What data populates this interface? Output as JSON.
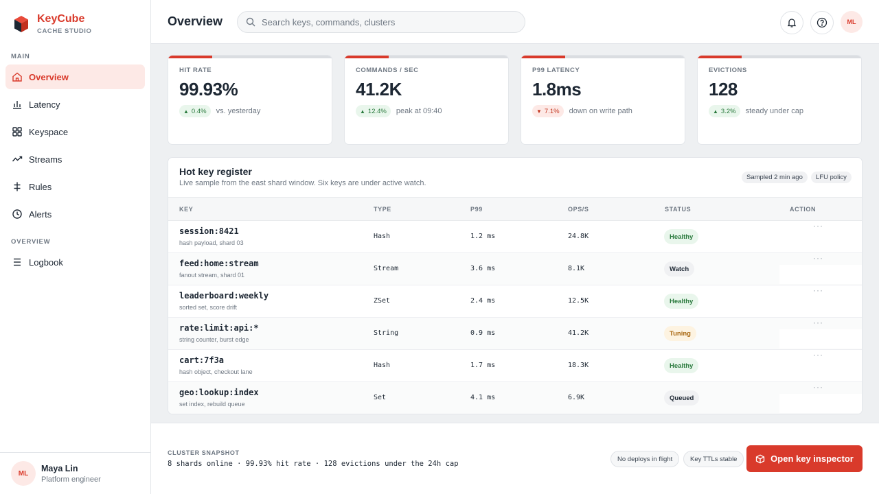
{
  "colors": {
    "accent": "#d93a2b",
    "healthy": "#2a7a3d",
    "tuning": "#a86710"
  },
  "brand": {
    "name": "KeyCube",
    "subtitle": "CACHE STUDIO",
    "logo_icon": "cube-logo-icon"
  },
  "sidebar": {
    "section_main": "MAIN",
    "section_overview": "OVERVIEW",
    "items": [
      {
        "label": "Overview",
        "icon": "home-icon",
        "active": true
      },
      {
        "label": "Latency",
        "icon": "bar-chart-icon"
      },
      {
        "label": "Keyspace",
        "icon": "grid-icon"
      },
      {
        "label": "Streams",
        "icon": "trend-icon"
      },
      {
        "label": "Rules",
        "icon": "rules-icon"
      },
      {
        "label": "Alerts",
        "icon": "clock-icon"
      },
      {
        "label": "Logbook",
        "icon": "list-icon"
      }
    ],
    "user": {
      "initials": "ML",
      "name": "Maya Lin",
      "role": "Platform engineer"
    }
  },
  "header": {
    "title": "Overview",
    "search_placeholder": "Search keys, commands, clusters",
    "avatar_initials": "ML"
  },
  "kpis": [
    {
      "label": "HIT RATE",
      "value": "99.93%",
      "delta": "0.4%",
      "direction": "up",
      "note": "vs. yesterday",
      "bar_fraction": 0.27
    },
    {
      "label": "COMMANDS / SEC",
      "value": "41.2K",
      "delta": "12.4%",
      "direction": "up",
      "note": "peak at 09:40",
      "bar_fraction": 0.27
    },
    {
      "label": "P99 LATENCY",
      "value": "1.8ms",
      "delta": "7.1%",
      "direction": "down",
      "note": "down on write path",
      "bar_fraction": 0.27
    },
    {
      "label": "EVICTIONS",
      "value": "128",
      "delta": "3.2%",
      "direction": "up",
      "note": "steady under cap",
      "bar_fraction": 0.27
    }
  ],
  "register": {
    "title": "Hot key register",
    "subtitle": "Live sample from the east shard window. Six keys are under active watch.",
    "pill_sampled": "Sampled 2 min ago",
    "pill_policy": "LFU policy",
    "columns": {
      "key": "KEY",
      "type": "TYPE",
      "p99": "P99",
      "ops": "OPS/S",
      "status": "STATUS",
      "action": "ACTION"
    },
    "rows": [
      {
        "key": "session:8421",
        "desc": "hash payload, shard 03",
        "type": "Hash",
        "p99": "1.2 ms",
        "ops": "24.8K",
        "status": "Healthy",
        "status_kind": "healthy",
        "action": "···"
      },
      {
        "key": "feed:home:stream",
        "desc": "fanout stream, shard 01",
        "type": "Stream",
        "p99": "3.6 ms",
        "ops": "8.1K",
        "status": "Watch",
        "status_kind": "watch",
        "action": "···"
      },
      {
        "key": "leaderboard:weekly",
        "desc": "sorted set, score drift",
        "type": "ZSet",
        "p99": "2.4 ms",
        "ops": "12.5K",
        "status": "Healthy",
        "status_kind": "healthy",
        "action": "···"
      },
      {
        "key": "rate:limit:api:*",
        "desc": "string counter, burst edge",
        "type": "String",
        "p99": "0.9 ms",
        "ops": "41.2K",
        "status": "Tuning",
        "status_kind": "tuning",
        "action": "···"
      },
      {
        "key": "cart:7f3a",
        "desc": "hash object, checkout lane",
        "type": "Hash",
        "p99": "1.7 ms",
        "ops": "18.3K",
        "status": "Healthy",
        "status_kind": "healthy",
        "action": "···"
      },
      {
        "key": "geo:lookup:index",
        "desc": "set index, rebuild queue",
        "type": "Set",
        "p99": "4.1 ms",
        "ops": "6.9K",
        "status": "Queued",
        "status_kind": "queued",
        "action": "···"
      }
    ]
  },
  "footer": {
    "label": "CLUSTER SNAPSHOT",
    "text": "8 shards online · 99.93% hit rate · 128 evictions under the 24h cap",
    "pill_deploys": "No deploys in flight",
    "pill_ttl": "Key TTLs stable",
    "button_label": "Open key inspector",
    "button_icon": "box-icon"
  }
}
